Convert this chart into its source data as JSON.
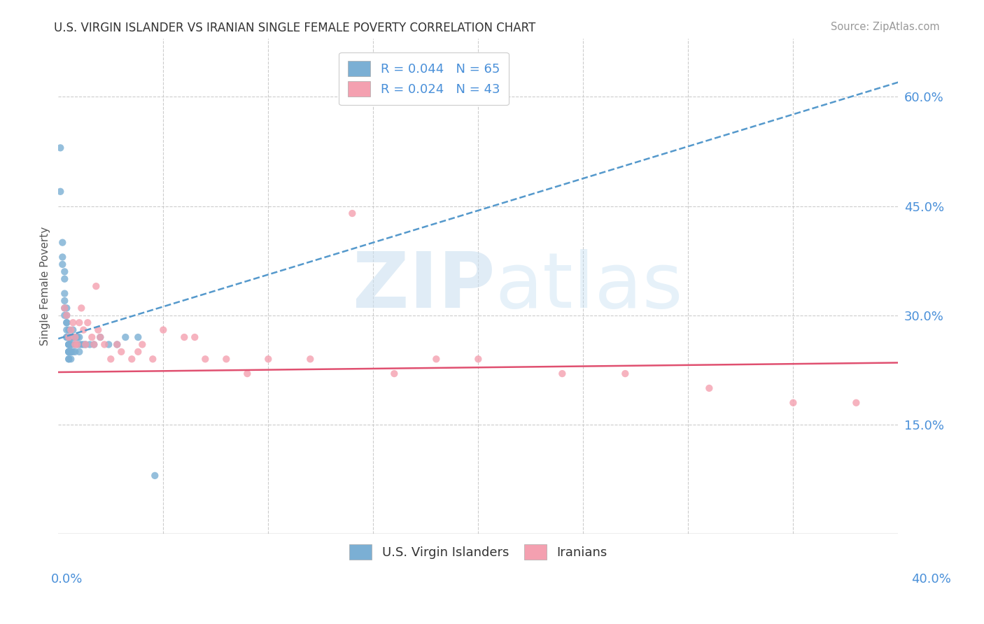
{
  "title": "U.S. VIRGIN ISLANDER VS IRANIAN SINGLE FEMALE POVERTY CORRELATION CHART",
  "source": "Source: ZipAtlas.com",
  "ylabel": "Single Female Poverty",
  "right_ytick_vals": [
    0.15,
    0.3,
    0.45,
    0.6
  ],
  "right_ytick_labels": [
    "15.0%",
    "30.0%",
    "45.0%",
    "60.0%"
  ],
  "legend1_label": "R = 0.044   N = 65",
  "legend2_label": "R = 0.024   N = 43",
  "legend_bottom1": "U.S. Virgin Islanders",
  "legend_bottom2": "Iranians",
  "color_vi": "#7bafd4",
  "color_ir": "#f4a0b0",
  "trendline_vi_color": "#5599cc",
  "trendline_ir_color": "#e05070",
  "xlim": [
    0.0,
    0.4
  ],
  "ylim": [
    0.0,
    0.68
  ],
  "vi_trend_x": [
    0.0,
    0.4
  ],
  "vi_trend_y": [
    0.268,
    0.62
  ],
  "ir_trend_x": [
    0.0,
    0.4
  ],
  "ir_trend_y": [
    0.222,
    0.235
  ],
  "vi_x": [
    0.001,
    0.001,
    0.002,
    0.002,
    0.002,
    0.003,
    0.003,
    0.003,
    0.003,
    0.003,
    0.003,
    0.004,
    0.004,
    0.004,
    0.004,
    0.004,
    0.004,
    0.004,
    0.005,
    0.005,
    0.005,
    0.005,
    0.005,
    0.005,
    0.005,
    0.005,
    0.005,
    0.005,
    0.005,
    0.005,
    0.005,
    0.005,
    0.005,
    0.006,
    0.006,
    0.006,
    0.006,
    0.006,
    0.006,
    0.006,
    0.006,
    0.007,
    0.007,
    0.007,
    0.007,
    0.007,
    0.008,
    0.008,
    0.008,
    0.009,
    0.009,
    0.01,
    0.01,
    0.01,
    0.011,
    0.012,
    0.013,
    0.015,
    0.017,
    0.02,
    0.024,
    0.028,
    0.032,
    0.038,
    0.046
  ],
  "vi_y": [
    0.53,
    0.47,
    0.4,
    0.38,
    0.37,
    0.36,
    0.35,
    0.33,
    0.32,
    0.31,
    0.3,
    0.31,
    0.3,
    0.29,
    0.29,
    0.28,
    0.27,
    0.27,
    0.28,
    0.27,
    0.27,
    0.27,
    0.26,
    0.26,
    0.26,
    0.26,
    0.25,
    0.25,
    0.25,
    0.25,
    0.25,
    0.24,
    0.24,
    0.27,
    0.26,
    0.26,
    0.26,
    0.25,
    0.25,
    0.25,
    0.24,
    0.28,
    0.27,
    0.27,
    0.26,
    0.25,
    0.27,
    0.26,
    0.25,
    0.27,
    0.26,
    0.27,
    0.26,
    0.25,
    0.26,
    0.26,
    0.26,
    0.26,
    0.26,
    0.27,
    0.26,
    0.26,
    0.27,
    0.27,
    0.08
  ],
  "ir_x": [
    0.003,
    0.004,
    0.005,
    0.006,
    0.007,
    0.008,
    0.008,
    0.009,
    0.01,
    0.011,
    0.012,
    0.013,
    0.014,
    0.016,
    0.017,
    0.018,
    0.019,
    0.02,
    0.022,
    0.025,
    0.028,
    0.03,
    0.035,
    0.038,
    0.04,
    0.045,
    0.05,
    0.06,
    0.065,
    0.07,
    0.08,
    0.09,
    0.1,
    0.12,
    0.14,
    0.16,
    0.18,
    0.2,
    0.24,
    0.27,
    0.31,
    0.35,
    0.38
  ],
  "ir_y": [
    0.31,
    0.3,
    0.27,
    0.28,
    0.29,
    0.27,
    0.26,
    0.26,
    0.29,
    0.31,
    0.28,
    0.26,
    0.29,
    0.27,
    0.26,
    0.34,
    0.28,
    0.27,
    0.26,
    0.24,
    0.26,
    0.25,
    0.24,
    0.25,
    0.26,
    0.24,
    0.28,
    0.27,
    0.27,
    0.24,
    0.24,
    0.22,
    0.24,
    0.24,
    0.44,
    0.22,
    0.24,
    0.24,
    0.22,
    0.22,
    0.2,
    0.18,
    0.18
  ]
}
